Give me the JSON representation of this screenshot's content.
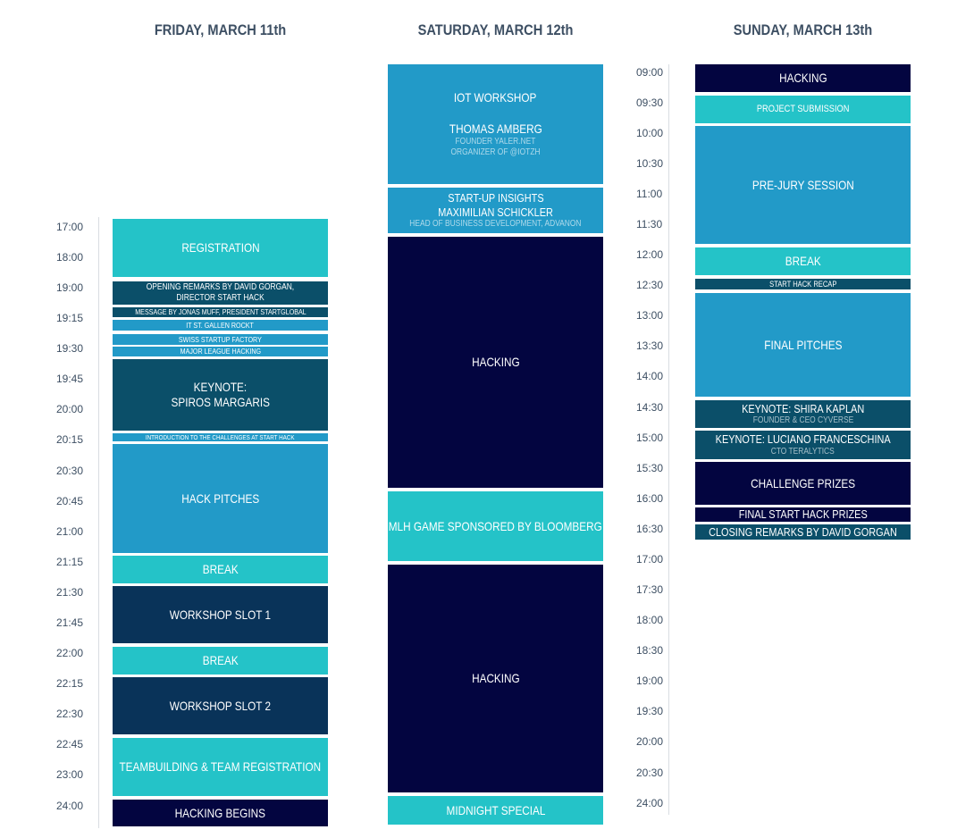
{
  "days": {
    "friday": {
      "title": "FRIDAY, MARCH 11th",
      "times": [
        "17:00",
        "18:00",
        "19:00",
        "19:15",
        "19:30",
        "19:45",
        "20:00",
        "20:15",
        "20:30",
        "20:45",
        "21:00",
        "21:15",
        "21:30",
        "21:45",
        "22:00",
        "22:15",
        "22:30",
        "22:45",
        "23:00",
        "24:00"
      ],
      "events": {
        "registration": {
          "lines": [
            "REGISTRATION"
          ]
        },
        "opening": {
          "lines": [
            "OPENING REMARKS BY DAVID GORGAN,",
            "DIRECTOR START HACK"
          ]
        },
        "message": {
          "lines": [
            "MESSAGE BY JONAS MUFF, PRESIDENT STARTGLOBAL"
          ]
        },
        "itstgallen": {
          "lines": [
            "IT ST. GALLEN ROCKT"
          ]
        },
        "swiss": {
          "lines": [
            "SWISS STARTUP FACTORY"
          ]
        },
        "mlh": {
          "lines": [
            "MAJOR LEAGUE HACKING"
          ]
        },
        "keynote": {
          "lines": [
            "KEYNOTE:",
            "SPIROS MARGARIS"
          ]
        },
        "intro": {
          "lines": [
            "INTRODUCTION TO THE CHALLENGES AT START HACK"
          ]
        },
        "pitches": {
          "lines": [
            "HACK PITCHES"
          ]
        },
        "break1": {
          "lines": [
            "BREAK"
          ]
        },
        "workshop1": {
          "lines": [
            "WORKSHOP SLOT 1"
          ]
        },
        "break2": {
          "lines": [
            "BREAK"
          ]
        },
        "workshop2": {
          "lines": [
            "WORKSHOP SLOT 2"
          ]
        },
        "teambuilding": {
          "lines": [
            "TEAMBUILDING & TEAM REGISTRATION"
          ]
        },
        "hacking_begins": {
          "lines": [
            "HACKING BEGINS"
          ]
        }
      }
    },
    "saturday": {
      "title": "SATURDAY, MARCH 12th",
      "events": {
        "iot": {
          "lines": [
            "IOT WORKSHOP",
            "",
            "THOMAS AMBERG"
          ],
          "sub": [
            "FOUNDER YALER.NET",
            "ORGANIZER OF @IOTZH"
          ]
        },
        "startup": {
          "lines": [
            "START-UP INSIGHTS",
            "MAXIMILIAN SCHICKLER"
          ],
          "sub": [
            "HEAD OF BUSINESS DEVELOPMENT, ADVANON"
          ]
        },
        "hacking1": {
          "lines": [
            "HACKING"
          ]
        },
        "mlhgame": {
          "lines": [
            "MLH GAME SPONSORED BY BLOOMBERG"
          ]
        },
        "hacking2": {
          "lines": [
            "HACKING"
          ]
        },
        "midnight": {
          "lines": [
            "MIDNIGHT SPECIAL"
          ]
        }
      }
    },
    "sunday": {
      "title": "SUNDAY, MARCH 13th",
      "times": [
        "09:00",
        "09:30",
        "10:00",
        "10:30",
        "11:00",
        "11:30",
        "12:00",
        "12:30",
        "13:00",
        "13:30",
        "14:00",
        "14:30",
        "15:00",
        "15:30",
        "16:00",
        "16:30",
        "17:00",
        "17:30",
        "18:00",
        "18:30",
        "19:00",
        "19:30",
        "20:00",
        "20:30",
        "24:00"
      ],
      "events": {
        "hacking": {
          "lines": [
            "HACKING"
          ]
        },
        "submission": {
          "lines": [
            "PROJECT SUBMISSION"
          ]
        },
        "prejury": {
          "lines": [
            "PRE-JURY SESSION"
          ]
        },
        "break": {
          "lines": [
            "BREAK"
          ]
        },
        "recap": {
          "lines": [
            "START HACK RECAP"
          ]
        },
        "finalpitches": {
          "lines": [
            "FINAL PITCHES"
          ]
        },
        "kaplan": {
          "lines": [
            "KEYNOTE: SHIRA KAPLAN"
          ],
          "sub": [
            "FOUNDER & CEO CYVERSE"
          ]
        },
        "franceschina": {
          "lines": [
            "KEYNOTE: LUCIANO FRANCESCHINA"
          ],
          "sub": [
            "CTO TERALYTICS"
          ]
        },
        "challenge": {
          "lines": [
            "CHALLENGE PRIZES"
          ]
        },
        "finalprizes": {
          "lines": [
            "FINAL START HACK PRIZES"
          ]
        },
        "closing": {
          "lines": [
            "CLOSING REMARKS BY DAVID GORGAN"
          ]
        }
      }
    }
  },
  "colors": {
    "teal": "#24c3c8",
    "blue": "#229ac8",
    "navy": "#030540",
    "dark_teal": "#0b4f69",
    "dark_navy": "#093359",
    "title_text": "#3d4f63"
  }
}
